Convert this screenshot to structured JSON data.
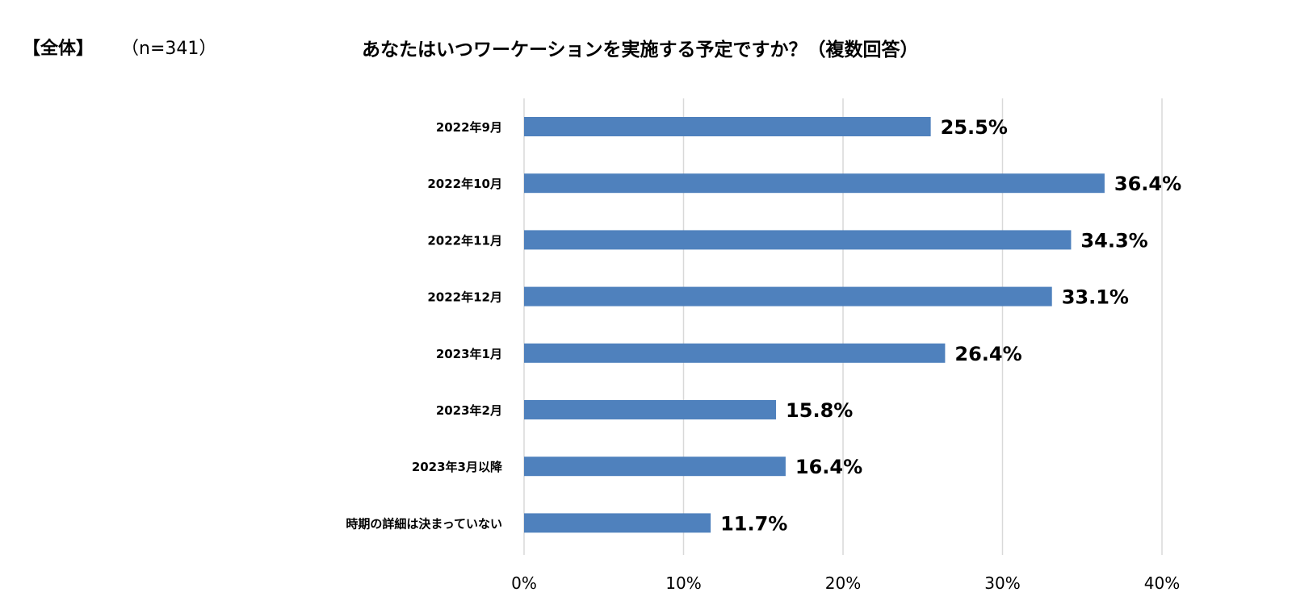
{
  "header": {
    "group_label": "【全体】",
    "sample_size": "（n=341）",
    "title": "あなたはいつワーケーションを実施する予定ですか？（複数回答）"
  },
  "chart_data": {
    "type": "bar",
    "orientation": "horizontal",
    "title": "あなたはいつワーケーションを実施する予定ですか？（複数回答）",
    "categories": [
      "2022年9月",
      "2022年10月",
      "2022年11月",
      "2022年12月",
      "2023年1月",
      "2023年2月",
      "2023年3月以降",
      "時期の詳細は決まっていない"
    ],
    "values": [
      25.5,
      36.4,
      34.3,
      33.1,
      26.4,
      15.8,
      16.4,
      11.7
    ],
    "value_labels": [
      "25.5%",
      "36.4%",
      "34.3%",
      "33.1%",
      "26.4%",
      "15.8%",
      "16.4%",
      "11.7%"
    ],
    "xlim": [
      0,
      40
    ],
    "xticks": [
      0,
      10,
      20,
      30,
      40
    ],
    "xtick_labels": [
      "0%",
      "10%",
      "20%",
      "30%",
      "40%"
    ],
    "grid": true,
    "bar_color": "#4f81bd",
    "grid_color": "#d9d9d9"
  }
}
